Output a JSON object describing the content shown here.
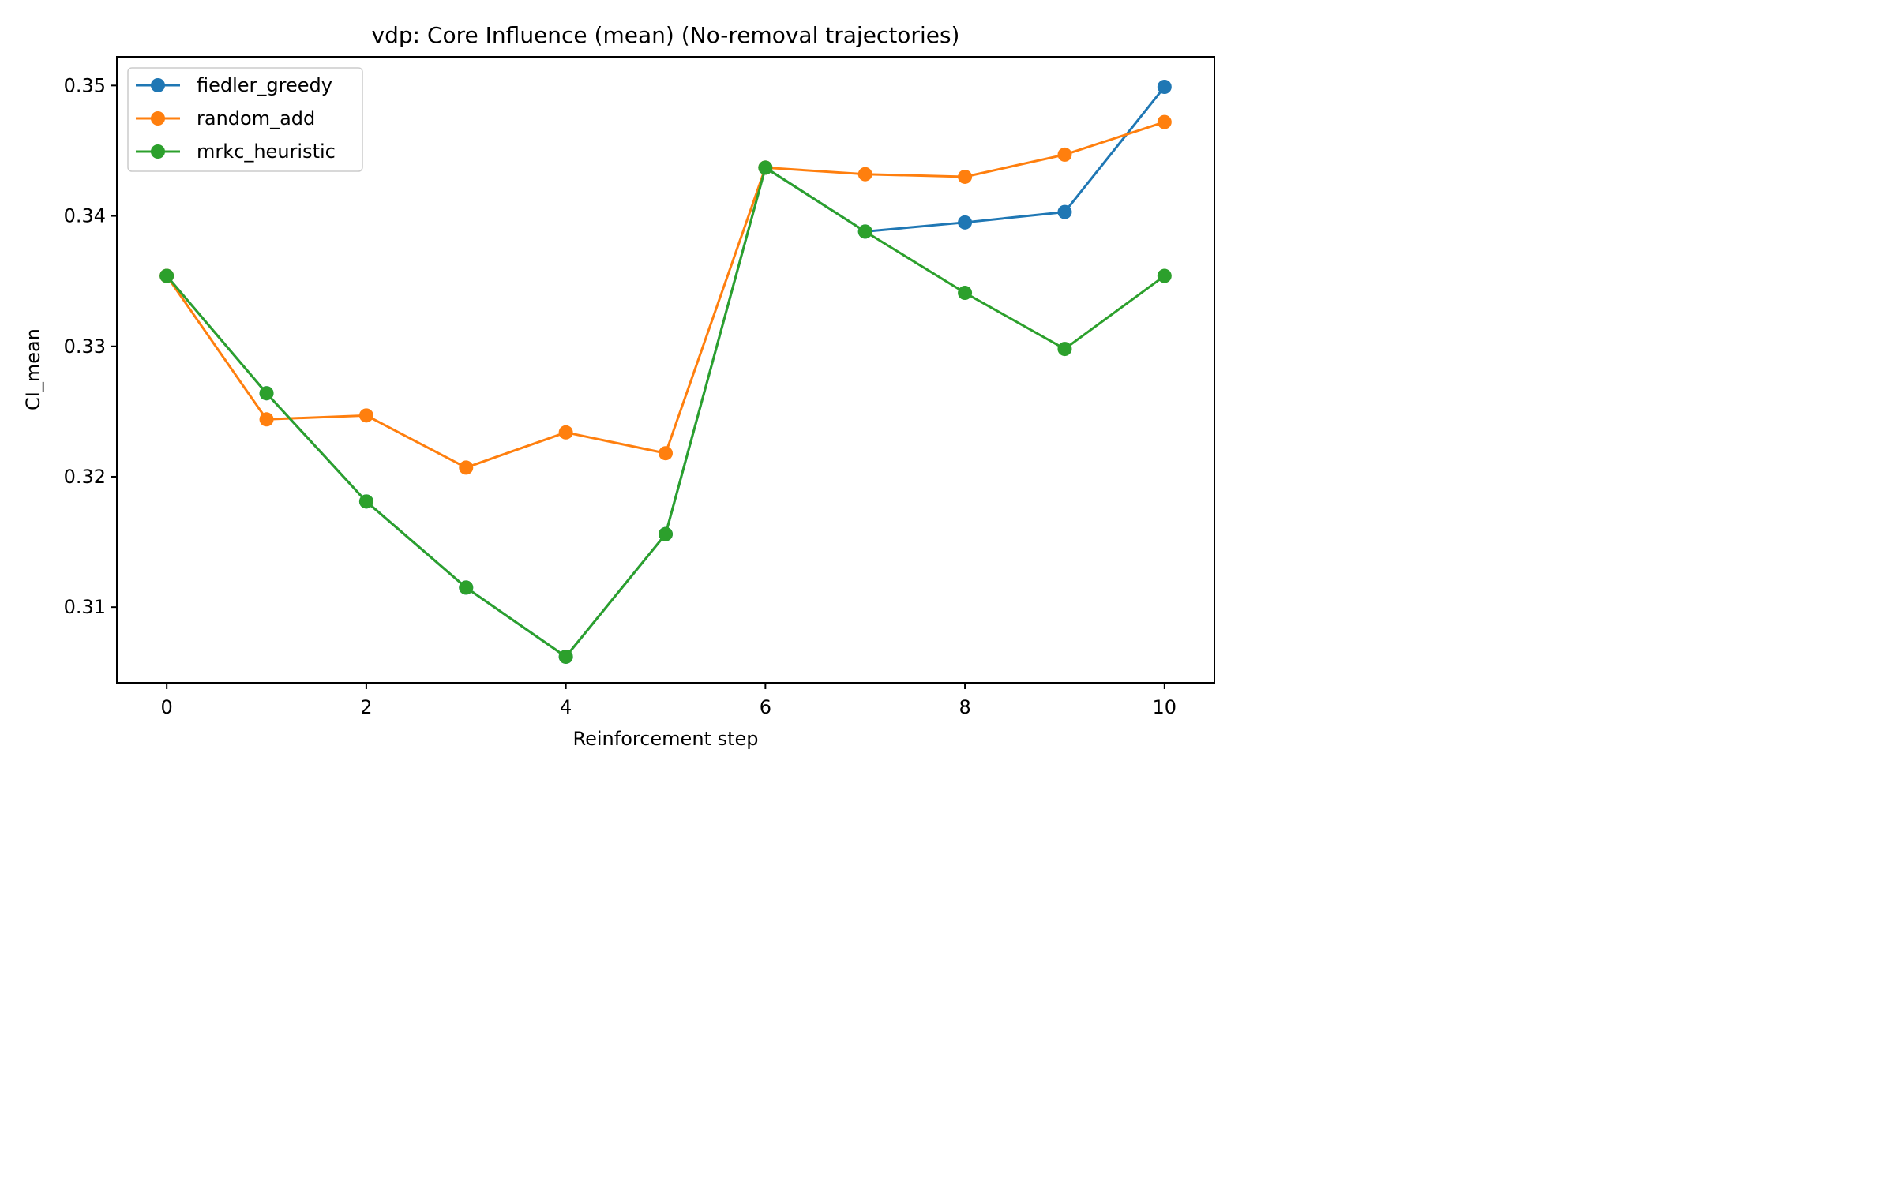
{
  "chart_data": {
    "type": "line",
    "title": "vdp: Core Influence (mean) (No-removal trajectories)",
    "xlabel": "Reinforcement step",
    "ylabel": "CI_mean",
    "xlim": [
      -0.5,
      10.5
    ],
    "ylim": [
      0.3042,
      0.3522
    ],
    "xticks": [
      0,
      2,
      4,
      6,
      8,
      10
    ],
    "yticks": [
      0.31,
      0.32,
      0.33,
      0.34,
      0.35
    ],
    "ytick_labels": [
      "0.31",
      "0.32",
      "0.33",
      "0.34",
      "0.35"
    ],
    "legend_position": "upper-left",
    "grid": false,
    "x": [
      0,
      1,
      2,
      3,
      4,
      5,
      6,
      7,
      8,
      9,
      10
    ],
    "series": [
      {
        "name": "fiedler_greedy",
        "color": "#1f77b4",
        "values": [
          0.3354,
          0.3264,
          0.3181,
          0.3115,
          0.3062,
          0.3156,
          0.3437,
          0.3388,
          0.3395,
          0.3403,
          0.3499
        ]
      },
      {
        "name": "random_add",
        "color": "#ff7f0e",
        "values": [
          0.3354,
          0.3244,
          0.3247,
          0.3207,
          0.3234,
          0.3218,
          0.3437,
          0.3432,
          0.343,
          0.3447,
          0.3472
        ]
      },
      {
        "name": "mrkc_heuristic",
        "color": "#2ca02c",
        "values": [
          0.3354,
          0.3264,
          0.3181,
          0.3115,
          0.3062,
          0.3156,
          0.3437,
          0.3388,
          0.3341,
          0.3298,
          0.3354
        ]
      }
    ]
  }
}
